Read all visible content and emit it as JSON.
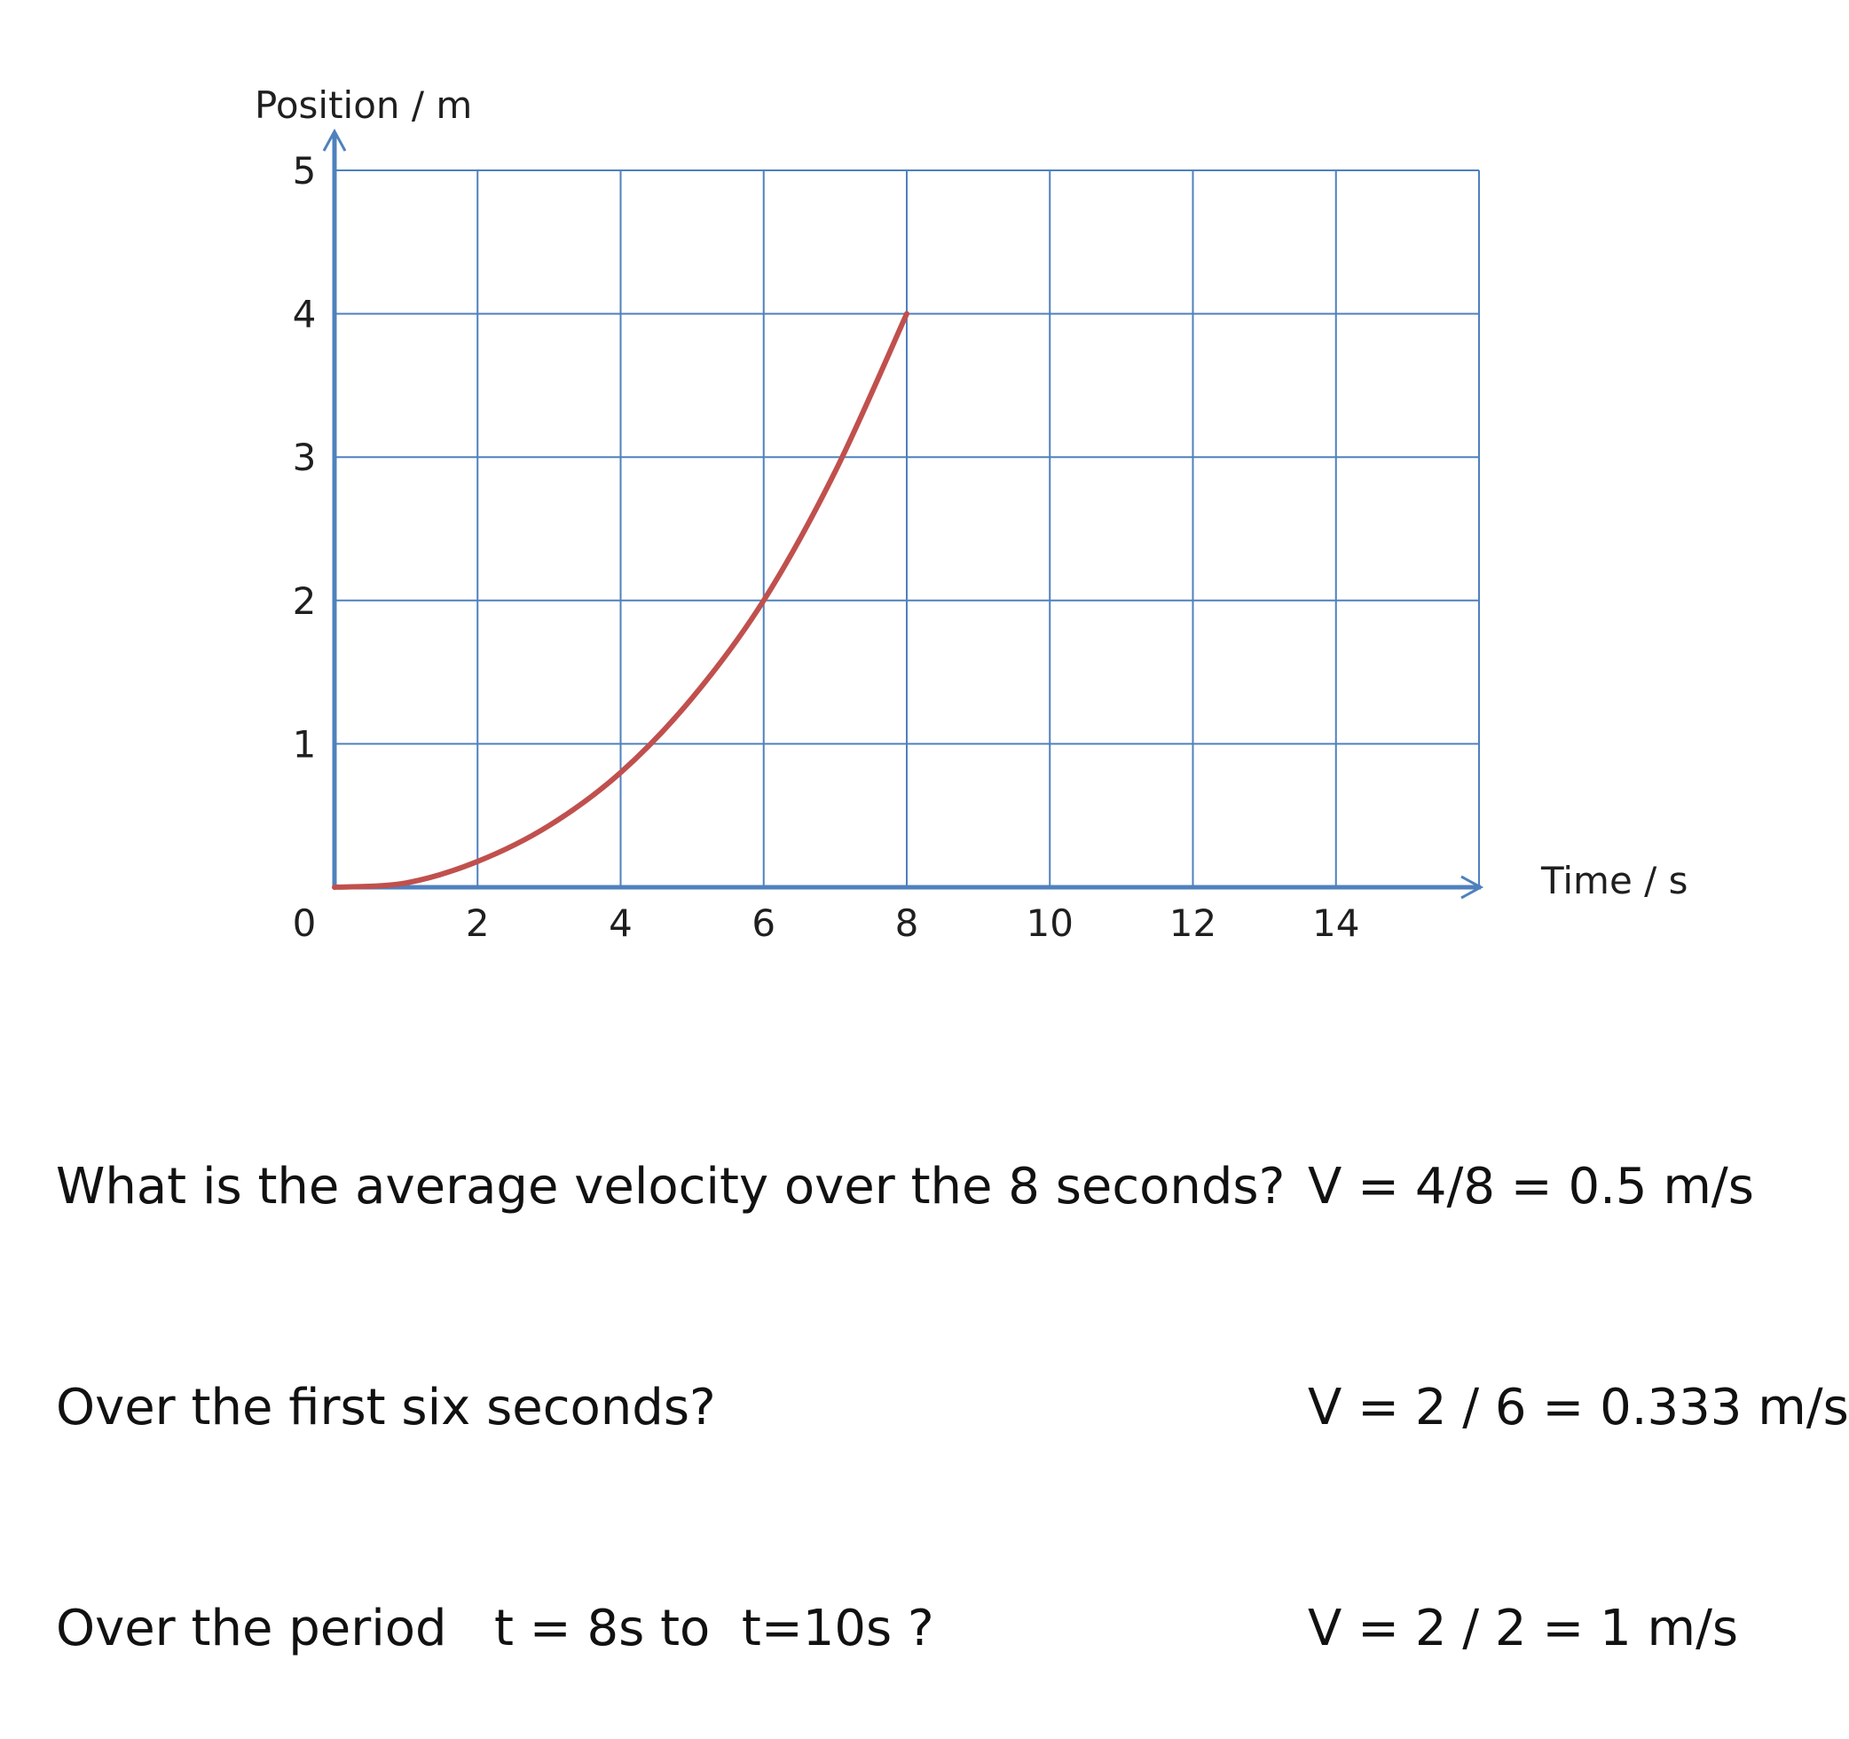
{
  "chart_data": {
    "type": "line",
    "title": "",
    "xlabel": "Time / s",
    "ylabel": "Position / m",
    "xlim": [
      0,
      16
    ],
    "ylim": [
      0,
      5
    ],
    "x_ticks": [
      "0",
      "2",
      "4",
      "6",
      "8",
      "10",
      "12",
      "14"
    ],
    "y_ticks": [
      "0",
      "1",
      "2",
      "3",
      "4",
      "5"
    ],
    "grid": true,
    "series": [
      {
        "x": [
          0,
          1,
          2,
          3,
          4,
          5,
          6,
          7,
          8
        ],
        "y": [
          0,
          0.03,
          0.18,
          0.43,
          0.8,
          1.32,
          2.0,
          2.9,
          4.0
        ],
        "color": "#c0504d"
      }
    ],
    "colors": {
      "axis": "#4f81bd",
      "grid": "#4f81bd",
      "curve": "#c0504d"
    }
  },
  "questions": [
    "What is the average velocity over the 8 seconds?",
    "Over the first six seconds?",
    "Over the period   t = 8s to  t=10s ?"
  ],
  "answers": [
    "V = 4/8 = 0.5 m/s",
    "V = 2 / 6 = 0.333 m/s",
    "V = 2 / 2 = 1 m/s"
  ]
}
